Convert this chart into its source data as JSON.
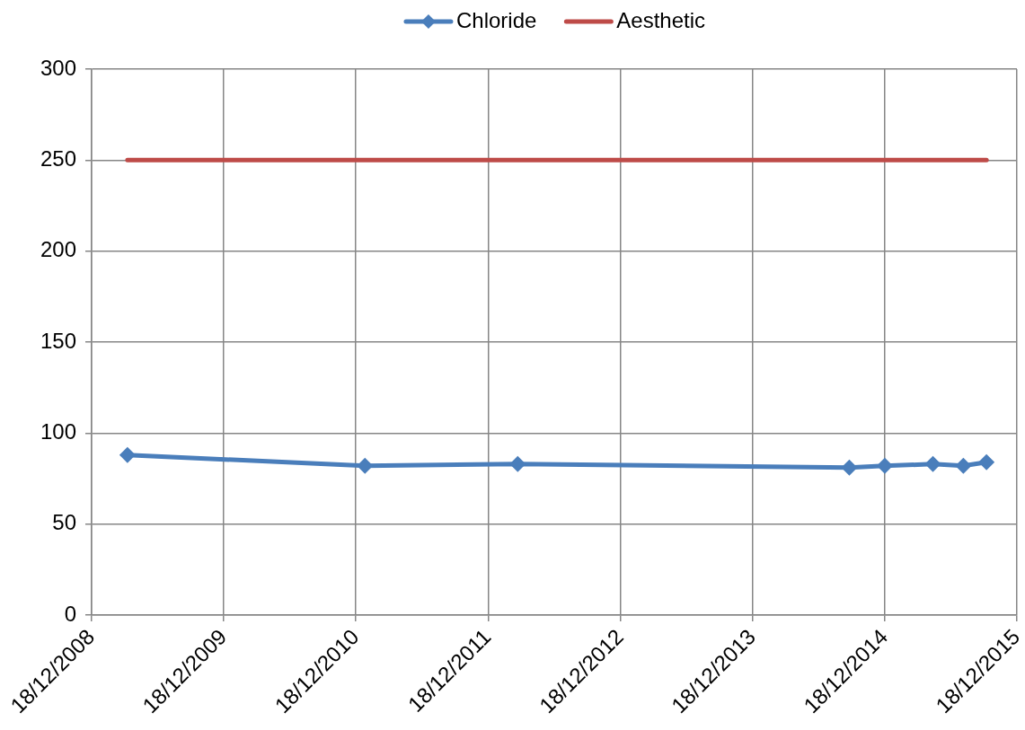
{
  "chart_data": {
    "type": "line",
    "x": [
      "2009-03-27",
      "2011-01-12",
      "2012-03-09",
      "2014-09-11",
      "2014-12-18",
      "2015-04-30",
      "2015-07-23",
      "2015-09-25"
    ],
    "series": [
      {
        "name": "Chloride",
        "color": "#4a7ebb",
        "values": [
          88,
          82,
          83,
          81,
          82,
          83,
          82,
          84
        ]
      },
      {
        "name": "Aesthetic",
        "color": "#be4b48",
        "values": [
          250,
          250,
          250,
          250,
          250,
          250,
          250,
          250
        ],
        "marker": "none"
      }
    ],
    "xlim": [
      "2008-12-18",
      "2015-12-18"
    ],
    "xticks": [
      {
        "value": "2008-12-18",
        "label": "18/12/2008"
      },
      {
        "value": "2009-12-18",
        "label": "18/12/2009"
      },
      {
        "value": "2010-12-18",
        "label": "18/12/2010"
      },
      {
        "value": "2011-12-18",
        "label": "18/12/2011"
      },
      {
        "value": "2012-12-18",
        "label": "18/12/2012"
      },
      {
        "value": "2013-12-18",
        "label": "18/12/2013"
      },
      {
        "value": "2014-12-18",
        "label": "18/12/2014"
      },
      {
        "value": "2015-12-18",
        "label": "18/12/2015"
      }
    ],
    "ylim": [
      0,
      300
    ],
    "yticks": [
      0,
      50,
      100,
      150,
      200,
      250,
      300
    ],
    "grid": true,
    "legend": "top",
    "marker": "diamond"
  }
}
